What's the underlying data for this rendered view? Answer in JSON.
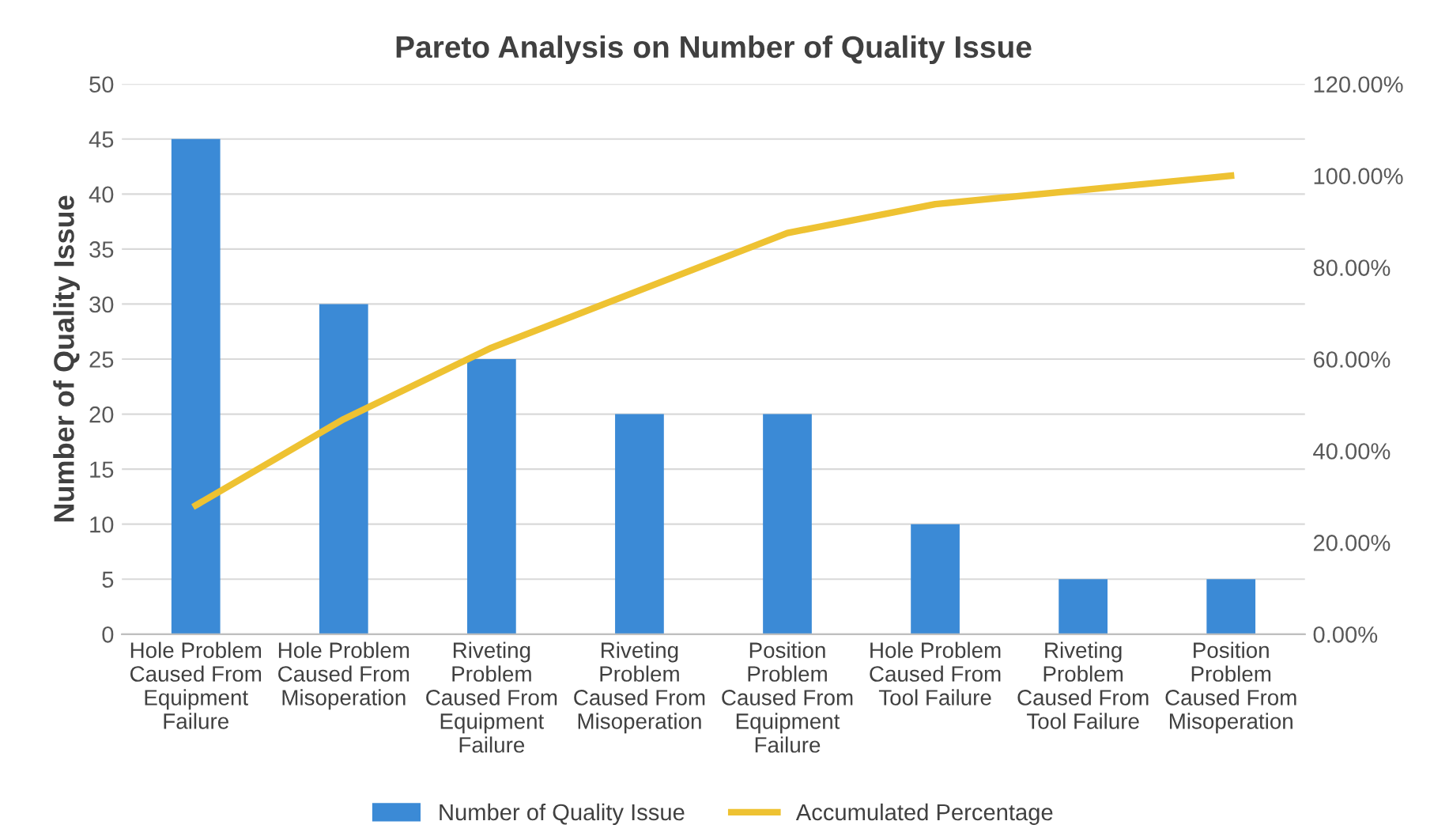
{
  "chart_data": {
    "type": "bar",
    "title": "Pareto Analysis on Number of Quality Issue",
    "ylabel": "Number of Quality Issue",
    "categories": [
      "Hole Problem Caused From Equipment Failure",
      "Hole Problem Caused From Misoperation",
      "Riveting Problem Caused From Equipment Failure",
      "Riveting Problem Caused From Misoperation",
      "Position Problem Caused From Equipment Failure",
      "Hole Problem Caused From Tool Failure",
      "Riveting Problem Caused From Tool Failure",
      "Position Problem Caused From Misoperation"
    ],
    "series": [
      {
        "name": "Number of Quality Issue",
        "color": "#3b8ad6",
        "values": [
          45,
          30,
          25,
          20,
          20,
          10,
          5,
          5
        ]
      },
      {
        "name": "Accumulated Percentage",
        "type": "line",
        "axis": "y2",
        "color": "#eec232",
        "values": [
          28.1,
          46.9,
          62.5,
          75,
          87.5,
          93.8,
          96.9,
          100
        ]
      }
    ],
    "ylim": [
      0,
      50
    ],
    "yticks": [
      0,
      5,
      10,
      15,
      20,
      25,
      30,
      35,
      40,
      45,
      50
    ],
    "y2lim": [
      0,
      120
    ],
    "y2ticks": [
      {
        "value": 0,
        "label": "0.00%"
      },
      {
        "value": 20,
        "label": "20.00%"
      },
      {
        "value": 40,
        "label": "40.00%"
      },
      {
        "value": 60,
        "label": "60.00%"
      },
      {
        "value": 80,
        "label": "80.00%"
      },
      {
        "value": 100,
        "label": "100.00%"
      },
      {
        "value": 120,
        "label": "120.00%"
      }
    ],
    "grid": "y",
    "legend": "bottom",
    "marker": "none",
    "line_style": "solid"
  }
}
